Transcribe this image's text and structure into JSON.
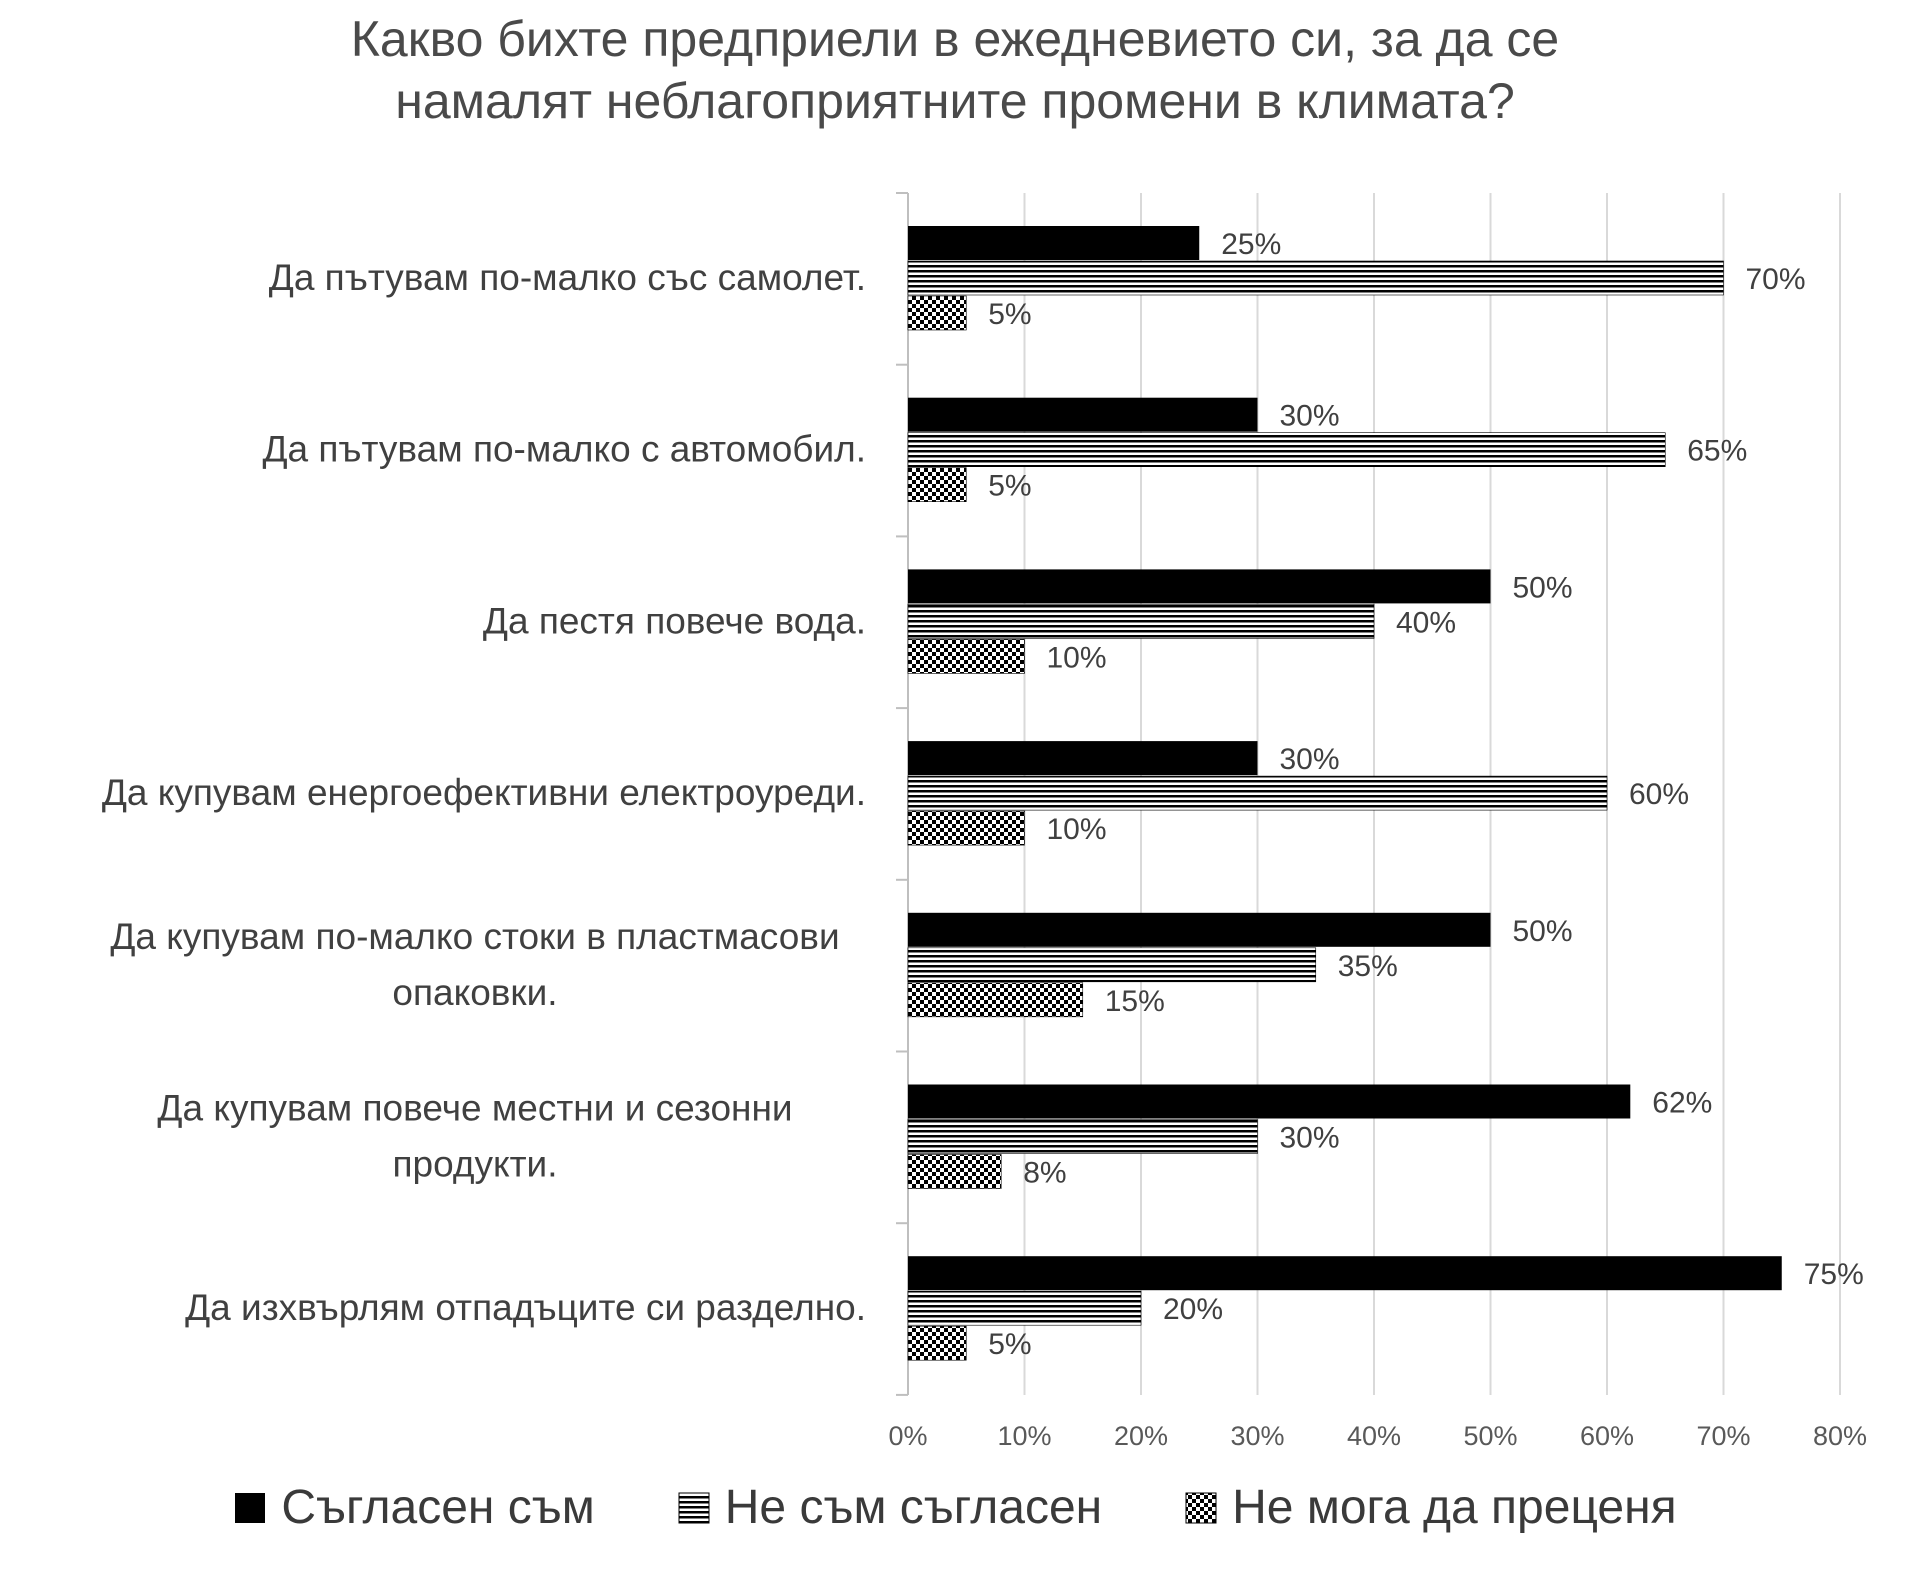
{
  "chart_data": {
    "type": "bar",
    "orientation": "horizontal",
    "title": "Какво бихте предприели в ежедневието си, за да се\nнамалят неблагоприятните промени в климата?",
    "categories": [
      "Да пътувам по-малко със самолет.",
      "Да пътувам по-малко с автомобил.",
      "Да пестя повече вода.",
      "Да купувам енергоефективни електроуреди.",
      "Да купувам по-малко стоки в пластмасови опаковки.",
      "Да купувам повече местни и сезонни продукти.",
      "Да изхвърлям отпадъците си разделно."
    ],
    "category_label_lines": [
      [
        "Да пътувам по-малко със самолет."
      ],
      [
        "Да пътувам по-малко с автомобил."
      ],
      [
        "Да пестя повече вода."
      ],
      [
        "Да купувам енергоефективни електроуреди."
      ],
      [
        "Да купувам по-малко стоки в пластмасови",
        "опаковки."
      ],
      [
        "Да купувам повече местни и сезонни",
        "продукти."
      ],
      [
        "Да изхвърлям отпадъците си разделно."
      ]
    ],
    "series": [
      {
        "name": "Съгласен съм",
        "pattern": "solid",
        "values": [
          25,
          30,
          50,
          30,
          50,
          62,
          75
        ]
      },
      {
        "name": "Не съм съгласен",
        "pattern": "horizontal-lines",
        "values": [
          70,
          65,
          40,
          60,
          35,
          30,
          20
        ]
      },
      {
        "name": "Не мога да преценя",
        "pattern": "checkerboard",
        "values": [
          5,
          5,
          10,
          10,
          15,
          8,
          5
        ]
      }
    ],
    "unit": "%",
    "xlim": [
      0,
      80
    ],
    "xticks": [
      "0%",
      "10%",
      "20%",
      "30%",
      "40%",
      "50%",
      "60%",
      "70%",
      "80%"
    ],
    "grid": true,
    "legend_position": "bottom",
    "colors": {
      "bar": "#000000",
      "grid": "#d9d9d9",
      "text": "#404040"
    }
  }
}
